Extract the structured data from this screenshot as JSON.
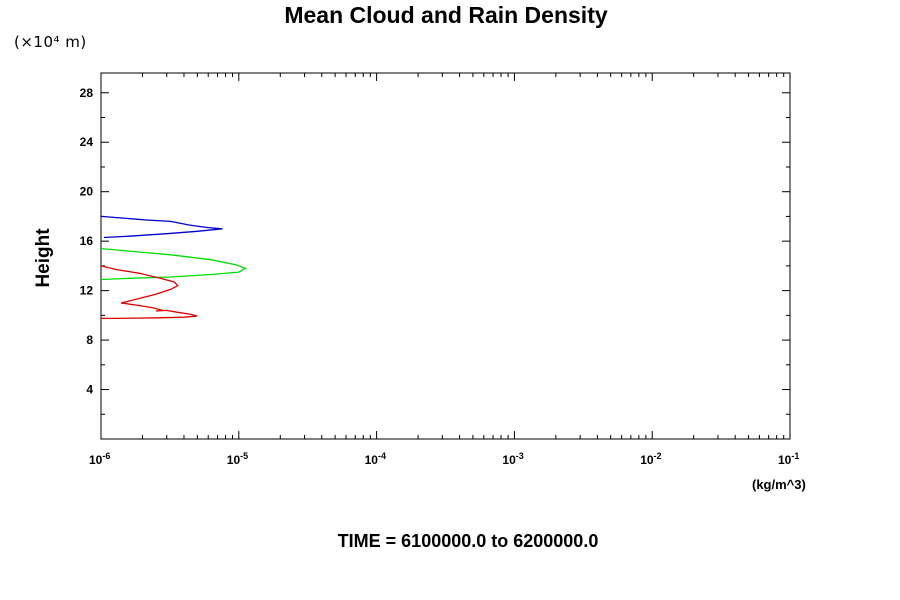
{
  "chart_data": {
    "type": "line",
    "title": "Mean Cloud and Rain Density",
    "ylabel": "Height",
    "y_unit": "(×10⁴ m)",
    "x_unit": "(kg/m^3)",
    "footer": "TIME = 6100000.0 to 6200000.0",
    "x_scale": "log",
    "xlim": [
      1e-06,
      0.1
    ],
    "ylim": [
      0,
      29.6
    ],
    "x_ticks": [
      {
        "value": 1e-06,
        "base": "10",
        "exp": "-6"
      },
      {
        "value": 1e-05,
        "base": "10",
        "exp": "-5"
      },
      {
        "value": 0.0001,
        "base": "10",
        "exp": "-4"
      },
      {
        "value": 0.001,
        "base": "10",
        "exp": "-3"
      },
      {
        "value": 0.01,
        "base": "10",
        "exp": "-2"
      },
      {
        "value": 0.1,
        "base": "10",
        "exp": "-1"
      }
    ],
    "y_ticks": [
      4,
      8,
      12,
      16,
      20,
      24,
      28
    ],
    "grid": false,
    "series": [
      {
        "color": "#0000cc",
        "points": [
          [
            1e-06,
            18.0
          ],
          [
            2.2e-06,
            17.7
          ],
          [
            3.2e-06,
            17.6
          ],
          [
            4.4e-06,
            17.3
          ],
          [
            6e-06,
            17.1
          ],
          [
            7.6e-06,
            17.0
          ],
          [
            5e-06,
            16.8
          ],
          [
            3e-06,
            16.6
          ],
          [
            1.6e-06,
            16.4
          ],
          [
            1.05e-06,
            16.3
          ]
        ]
      },
      {
        "color": "#00dd00",
        "points": [
          [
            1e-06,
            15.4
          ],
          [
            1.6e-06,
            15.2
          ],
          [
            3.2e-06,
            14.9
          ],
          [
            6.3e-06,
            14.5
          ],
          [
            9.5e-06,
            14.1
          ],
          [
            1.12e-05,
            13.8
          ],
          [
            1e-05,
            13.5
          ],
          [
            6.3e-06,
            13.3
          ],
          [
            3.2e-06,
            13.1
          ],
          [
            1.6e-06,
            13.0
          ],
          [
            1e-06,
            12.9
          ]
        ]
      },
      {
        "color": "#dd0000",
        "points": [
          [
            1e-06,
            14.0
          ],
          [
            1.3e-06,
            13.7
          ],
          [
            1.9e-06,
            13.4
          ],
          [
            2.7e-06,
            13.0
          ],
          [
            3.4e-06,
            12.7
          ],
          [
            3.6e-06,
            12.4
          ],
          [
            3.2e-06,
            12.1
          ],
          [
            2.5e-06,
            11.7
          ],
          [
            1.8e-06,
            11.3
          ],
          [
            1.4e-06,
            11.0
          ],
          [
            1.9e-06,
            10.8
          ],
          [
            2.4e-06,
            10.6
          ],
          [
            2.8e-06,
            10.4
          ],
          [
            2.5e-06,
            10.35
          ],
          [
            3e-06,
            10.4
          ],
          [
            3.6e-06,
            10.25
          ],
          [
            4.4e-06,
            10.1
          ],
          [
            5e-06,
            9.95
          ],
          [
            4e-06,
            9.85
          ],
          [
            2.6e-06,
            9.8
          ],
          [
            1.3e-06,
            9.75
          ],
          [
            1e-06,
            9.75
          ]
        ]
      }
    ]
  }
}
